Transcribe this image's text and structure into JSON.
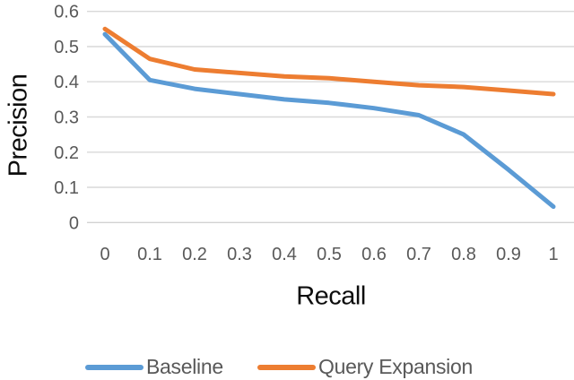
{
  "chart_data": {
    "type": "line",
    "title": "",
    "xlabel": "Recall",
    "ylabel": "Precision",
    "x": [
      0,
      0.1,
      0.2,
      0.3,
      0.4,
      0.5,
      0.6,
      0.7,
      0.8,
      0.9,
      1
    ],
    "xticks": [
      "0",
      "0.1",
      "0.2",
      "0.3",
      "0.4",
      "0.5",
      "0.6",
      "0.7",
      "0.8",
      "0.9",
      "1"
    ],
    "yticks": [
      "0",
      "0.1",
      "0.2",
      "0.3",
      "0.4",
      "0.5",
      "0.6"
    ],
    "ylim": [
      0,
      0.6
    ],
    "xlim": [
      0,
      1
    ],
    "grid": true,
    "legend_position": "bottom",
    "series": [
      {
        "name": "Baseline",
        "color": "#5B9BD5",
        "values": [
          0.535,
          0.405,
          0.38,
          0.365,
          0.35,
          0.34,
          0.325,
          0.305,
          0.25,
          0.15,
          0.045
        ]
      },
      {
        "name": "Query Expansion",
        "color": "#ED7D31",
        "values": [
          0.55,
          0.465,
          0.435,
          0.425,
          0.415,
          0.41,
          0.4,
          0.39,
          0.385,
          0.375,
          0.365
        ]
      }
    ],
    "colors": {
      "gridline": "#D9D9D9",
      "axis_line": "#D2D2D2",
      "tick_label": "#595959",
      "axis_title": "#0D0D0D",
      "legend_text": "#595959",
      "background": "#FFFFFF"
    }
  }
}
